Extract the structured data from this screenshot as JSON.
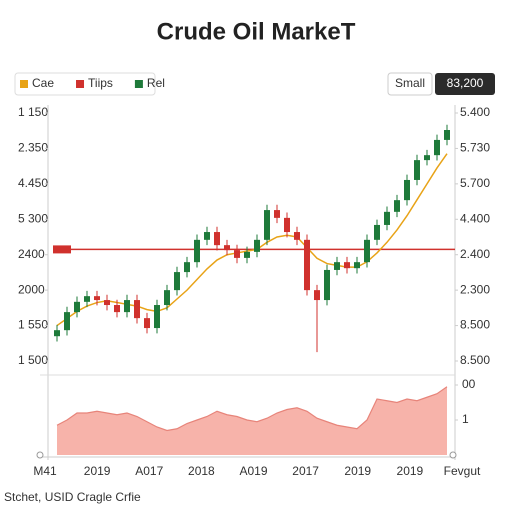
{
  "chart_data": {
    "type": "candlestick",
    "title": "Crude Oil MarkeT",
    "legend": [
      {
        "name": "Cae",
        "color": "#e8a317"
      },
      {
        "name": "Tiips",
        "color": "#d0312d"
      },
      {
        "name": "Rel",
        "color": "#1e7a3a"
      }
    ],
    "buttons": [
      "Small",
      "83,200"
    ],
    "ylim": [
      0,
      7
    ],
    "yticks": [
      {
        "value": 7,
        "label": "1 150"
      },
      {
        "value": 6,
        "label": "2.350"
      },
      {
        "value": 5,
        "label": "4.450"
      },
      {
        "value": 4,
        "label": "5 300"
      },
      {
        "value": 3,
        "label": "2400"
      },
      {
        "value": 2,
        "label": "2000"
      },
      {
        "value": 1,
        "label": "1 550"
      },
      {
        "value": 0,
        "label": "1 500"
      }
    ],
    "y2ticks": [
      {
        "value": 7,
        "label": "5.400"
      },
      {
        "value": 6,
        "label": "5.730"
      },
      {
        "value": 5,
        "label": "5.700"
      },
      {
        "value": 4,
        "label": "4.400"
      },
      {
        "value": 3,
        "label": "2.400"
      },
      {
        "value": 2,
        "label": "2.300"
      },
      {
        "value": 1,
        "label": "8.500"
      },
      {
        "value": 0,
        "label": "8.500"
      }
    ],
    "open": [
      0.7,
      0.87,
      1.38,
      1.67,
      1.83,
      1.72,
      1.58,
      1.38,
      1.72,
      1.21,
      0.93,
      1.58,
      2.0,
      2.51,
      2.79,
      3.42,
      3.64,
      3.27,
      3.13,
      2.91,
      3.08,
      3.42,
      4.26,
      4.04,
      3.64,
      3.42,
      2.0,
      1.72,
      2.57,
      2.79,
      2.62,
      2.79,
      3.42,
      3.84,
      4.21,
      4.54,
      5.11,
      5.67,
      5.81,
      6.24
    ],
    "high": [
      1.02,
      1.53,
      1.82,
      1.98,
      1.98,
      1.87,
      1.73,
      1.87,
      1.87,
      1.36,
      1.73,
      2.15,
      2.66,
      2.94,
      3.57,
      3.79,
      3.79,
      3.42,
      3.28,
      3.23,
      3.57,
      4.41,
      4.41,
      4.19,
      3.79,
      3.57,
      2.15,
      2.72,
      2.94,
      2.94,
      2.94,
      3.57,
      3.99,
      4.36,
      4.69,
      5.26,
      5.82,
      5.96,
      6.39,
      6.67
    ],
    "low": [
      0.55,
      0.72,
      1.23,
      1.52,
      1.57,
      1.43,
      1.23,
      1.23,
      1.06,
      0.78,
      0.78,
      1.43,
      1.85,
      2.36,
      2.64,
      3.27,
      3.12,
      2.98,
      2.76,
      2.76,
      2.93,
      3.27,
      3.89,
      3.49,
      3.27,
      1.85,
      0.25,
      1.57,
      2.42,
      2.47,
      2.47,
      2.64,
      3.27,
      3.69,
      4.06,
      4.39,
      4.96,
      5.52,
      5.66,
      6.09
    ],
    "close": [
      0.87,
      1.38,
      1.67,
      1.83,
      1.72,
      1.58,
      1.38,
      1.72,
      1.21,
      0.93,
      1.58,
      2.0,
      2.51,
      2.79,
      3.42,
      3.64,
      3.27,
      3.13,
      2.91,
      3.08,
      3.42,
      4.26,
      4.04,
      3.64,
      3.42,
      2.0,
      1.72,
      2.57,
      2.79,
      2.62,
      2.79,
      3.42,
      3.84,
      4.21,
      4.54,
      5.11,
      5.67,
      5.81,
      6.24,
      6.52
    ],
    "moving_average": [
      1.0,
      1.2,
      1.4,
      1.55,
      1.65,
      1.7,
      1.65,
      1.6,
      1.55,
      1.45,
      1.4,
      1.5,
      1.75,
      2.0,
      2.3,
      2.6,
      2.85,
      3.0,
      3.05,
      3.1,
      3.15,
      3.35,
      3.5,
      3.55,
      3.5,
      3.2,
      2.9,
      2.75,
      2.7,
      2.65,
      2.65,
      2.8,
      3.05,
      3.35,
      3.7,
      4.1,
      4.55,
      5.0,
      5.45,
      5.85
    ],
    "reference_line": 3.15,
    "volume": [
      0.85,
      1.0,
      1.2,
      1.2,
      1.25,
      1.2,
      1.15,
      1.2,
      1.1,
      0.95,
      0.8,
      0.7,
      0.75,
      0.9,
      1.0,
      1.1,
      1.25,
      1.15,
      1.1,
      1.0,
      0.95,
      1.05,
      1.2,
      1.3,
      1.35,
      1.25,
      1.05,
      0.95,
      0.85,
      0.8,
      0.75,
      1.0,
      1.6,
      1.55,
      1.5,
      1.6,
      1.55,
      1.65,
      1.75,
      1.95
    ],
    "volume_ylim": [
      0,
      2
    ],
    "volume_yticks": [
      {
        "value": 2,
        "label": "00"
      },
      1
    ],
    "x_labels": [
      "M41",
      "2019",
      "A017",
      "2018",
      "A019",
      "2017",
      "2019",
      "2019",
      "Fevgut"
    ],
    "footer": "Stchet, USID Cragle Crfie"
  }
}
